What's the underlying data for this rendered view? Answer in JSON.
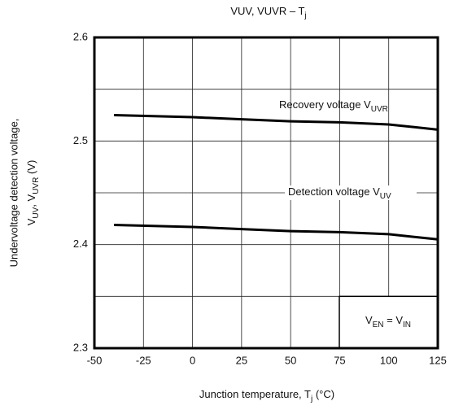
{
  "chart_data": {
    "type": "line",
    "title": [
      "VUV, VUVR – T",
      "j"
    ],
    "y_label_line1": "Undervoltage detection voltage,",
    "y_label_line2": [
      "V",
      "UV",
      ", V",
      "UVR",
      " (V)"
    ],
    "x_label": [
      "Junction temperature,   T",
      "j",
      "   (°C)"
    ],
    "xlim": [
      -50,
      125
    ],
    "xticks": [
      -50,
      -25,
      0,
      25,
      50,
      75,
      100,
      125
    ],
    "ylim": [
      2.3,
      2.6
    ],
    "yticks": [
      2.3,
      2.4,
      2.5,
      2.6
    ],
    "grid": true,
    "x": [
      -40,
      0,
      25,
      50,
      75,
      100,
      125
    ],
    "series": [
      {
        "name": [
          "Recovery voltage V",
          "UVR"
        ],
        "color": "#000000",
        "values": [
          2.525,
          2.523,
          2.521,
          2.519,
          2.518,
          2.516,
          2.511
        ]
      },
      {
        "name": [
          "Detection voltage V",
          "UV"
        ],
        "color": "#000000",
        "values": [
          2.419,
          2.417,
          2.415,
          2.413,
          2.412,
          2.41,
          2.405
        ]
      }
    ],
    "condition": [
      "V",
      "EN",
      " = V",
      "IN"
    ]
  }
}
